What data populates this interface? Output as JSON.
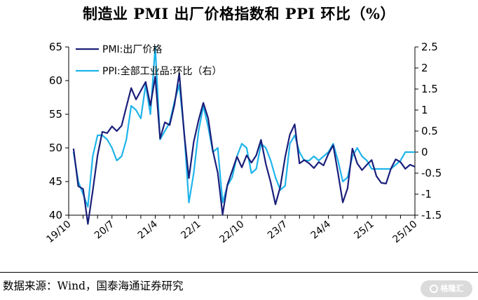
{
  "title": "制造业 PMI 出厂价格指数和 PPI 环比（%）",
  "source": "数据来源：Wind，国泰海通证券研究",
  "watermark": "格隆汇",
  "colors": {
    "pmi": "#1a1f7a",
    "ppi": "#1fb4ea",
    "axis": "#000000",
    "background": "#ffffff"
  },
  "chart_data": {
    "type": "line",
    "x": [
      "2019-11",
      "2019-12",
      "2020-01",
      "2020-02",
      "2020-03",
      "2020-04",
      "2020-05",
      "2020-06",
      "2020-07",
      "2020-08",
      "2020-09",
      "2020-10",
      "2020-11",
      "2020-12",
      "2021-01",
      "2021-02",
      "2021-03",
      "2021-04",
      "2021-05",
      "2021-06",
      "2021-07",
      "2021-08",
      "2021-09",
      "2021-10",
      "2021-11",
      "2021-12",
      "2022-01",
      "2022-02",
      "2022-03",
      "2022-04",
      "2022-05",
      "2022-06",
      "2022-07",
      "2022-08",
      "2022-09",
      "2022-10",
      "2022-11",
      "2022-12",
      "2023-01",
      "2023-02",
      "2023-03",
      "2023-04",
      "2023-05",
      "2023-06",
      "2023-07",
      "2023-08",
      "2023-09",
      "2023-10",
      "2023-11",
      "2023-12",
      "2024-01",
      "2024-02",
      "2024-03",
      "2024-04",
      "2024-05",
      "2024-06",
      "2024-07",
      "2024-08",
      "2024-09",
      "2024-10",
      "2024-11",
      "2024-12",
      "2025-01",
      "2025-02",
      "2025-03",
      "2025-04",
      "2025-05",
      "2025-06",
      "2025-07",
      "2025-08",
      "2025-09",
      "2025-10"
    ],
    "x_tick_labels": [
      "19/10",
      "20/7",
      "21/4",
      "22/1",
      "22/10",
      "23/7",
      "24/4",
      "25/1",
      "25/10"
    ],
    "x_range": [
      "2019-10",
      "2025-10"
    ],
    "series": [
      {
        "name": "PMI:出厂价格",
        "axis": "left",
        "values": [
          49.9,
          44.3,
          43.9,
          38.7,
          43.6,
          48.9,
          52.4,
          52.2,
          53.2,
          52.5,
          53.3,
          56.1,
          58.9,
          57.2,
          58.5,
          59.8,
          56.3,
          60.6,
          51.4,
          53.8,
          53.4,
          56.4,
          61.1,
          52.2,
          45.5,
          50.9,
          54.1,
          56.7,
          54.4,
          49.5,
          46.3,
          40.1,
          44.5,
          46.6,
          48.7,
          47.1,
          48.9,
          47.8,
          48.9,
          51.2,
          47.6,
          44.9,
          41.6,
          44.2,
          48.6,
          52.0,
          53.5,
          47.7,
          48.2,
          47.7,
          47.0,
          47.9,
          47.4,
          49.1,
          50.4,
          46.3,
          41.9,
          44.0,
          49.9,
          47.7,
          46.7,
          47.5,
          48.2,
          45.8,
          44.8,
          44.7,
          46.9,
          48.3,
          47.9,
          46.9,
          47.5,
          47.2
        ],
        "axis_range": [
          40,
          65
        ]
      },
      {
        "name": "PPI:全部工业品:环比（右）",
        "axis": "right",
        "values": [
          0.0,
          -0.7,
          -1.0,
          -1.3,
          -0.1,
          0.4,
          0.4,
          0.3,
          0.1,
          -0.2,
          -0.1,
          0.3,
          1.1,
          1.0,
          0.8,
          1.6,
          0.9,
          2.5,
          0.3,
          0.5,
          0.7,
          1.2,
          1.6,
          0.5,
          -1.2,
          -0.5,
          0.5,
          1.1,
          0.6,
          0.0,
          0.1,
          -1.2,
          -0.8,
          -0.6,
          -0.1,
          0.2,
          0.1,
          -0.5,
          -0.4,
          0.2,
          0.1,
          -0.2,
          -0.6,
          -0.9,
          -0.8,
          0.2,
          0.4,
          0.0,
          -0.2,
          -0.2,
          -0.1,
          -0.2,
          -0.1,
          0.0,
          0.2,
          -0.2,
          -0.7,
          -0.6,
          -0.1,
          0.1,
          -0.1,
          -0.2,
          -0.4,
          -0.4,
          -0.4,
          -0.4,
          -0.4,
          -0.3,
          -0.2,
          0.0,
          0.0,
          0.0
        ],
        "axis_range": [
          -1.5,
          2.5
        ]
      }
    ],
    "left_axis": {
      "min": 40,
      "max": 65,
      "ticks": [
        40,
        45,
        50,
        55,
        60,
        65
      ]
    },
    "right_axis": {
      "min": -1.5,
      "max": 2.5,
      "ticks": [
        "-1.5",
        "-1",
        "-0.5",
        "0",
        "0.5",
        "1",
        "1.5",
        "2",
        "2.5"
      ]
    },
    "legend": [
      "PMI:出厂价格",
      "PPI:全部工业品:环比（右）"
    ],
    "legend_placement": "top-left",
    "grid": false
  }
}
